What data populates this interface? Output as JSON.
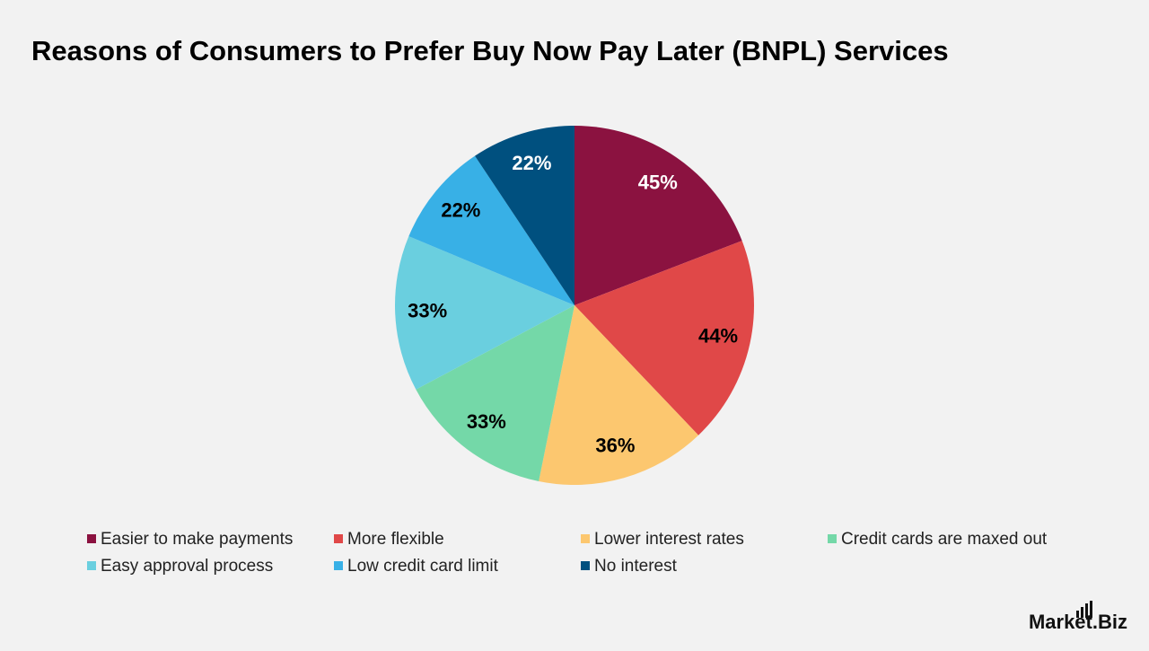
{
  "chart_data": {
    "type": "pie",
    "title": "Reasons of Consumers to Prefer Buy Now Pay Later (BNPL) Services",
    "categories": [
      "Easier to make payments",
      "More flexible",
      "Lower interest rates",
      "Credit cards are maxed out",
      "Easy approval process",
      "Low credit card limit",
      "No interest"
    ],
    "values": [
      45,
      44,
      36,
      33,
      33,
      22,
      22
    ],
    "value_labels": [
      "45%",
      "44%",
      "36%",
      "33%",
      "33%",
      "22%",
      "22%"
    ],
    "colors": [
      "#8b1240",
      "#e04848",
      "#fcc76f",
      "#74d8a8",
      "#6acfdf",
      "#38b0e6",
      "#00507f"
    ],
    "legend": "bottom"
  },
  "brand": "Market.Biz"
}
